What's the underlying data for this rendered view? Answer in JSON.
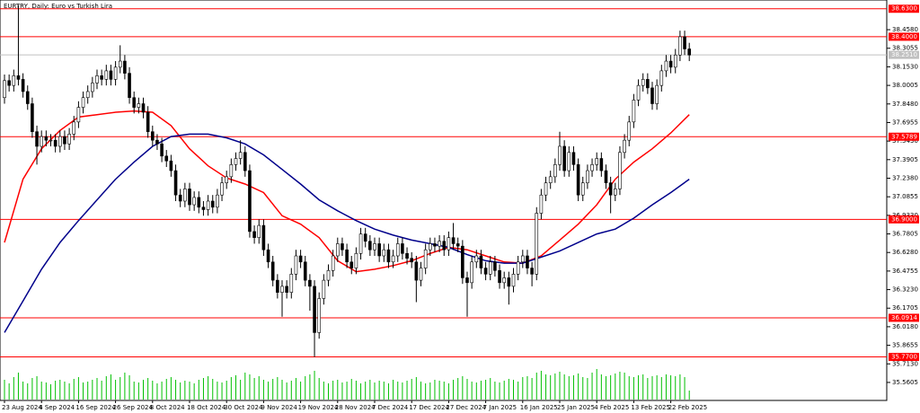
{
  "chart_data": {
    "type": "candlestick",
    "title": "EURTRY, Daily: Euro vs Turkish Lira",
    "categories": [
      "23 Aug 2024",
      null,
      null,
      null,
      null,
      null,
      null,
      null,
      "4 Sep 2024",
      null,
      null,
      null,
      null,
      null,
      null,
      null,
      "16 Sep 2024",
      null,
      null,
      null,
      null,
      null,
      null,
      null,
      "26 Sep 2024",
      null,
      null,
      null,
      null,
      null,
      null,
      null,
      "8 Oct 2024",
      null,
      null,
      null,
      null,
      null,
      null,
      null,
      "18 Oct 2024",
      null,
      null,
      null,
      null,
      null,
      null,
      null,
      "30 Oct 2024",
      null,
      null,
      null,
      null,
      null,
      null,
      null,
      "9 Nov 2024",
      null,
      null,
      null,
      null,
      null,
      null,
      null,
      "19 Nov 2024",
      null,
      null,
      null,
      null,
      null,
      null,
      null,
      "28 Nov 2024",
      null,
      null,
      null,
      null,
      null,
      null,
      null,
      "7 Dec 2024",
      null,
      null,
      null,
      null,
      null,
      null,
      null,
      "17 Dec 2024",
      null,
      null,
      null,
      null,
      null,
      null,
      null,
      "27 Dec 2024",
      null,
      null,
      null,
      null,
      null,
      null,
      null,
      "7 Jan 2025",
      null,
      null,
      null,
      null,
      null,
      null,
      null,
      "16 Jan 2025",
      null,
      null,
      null,
      null,
      null,
      null,
      null,
      "25 Jan 2025",
      null,
      null,
      null,
      null,
      null,
      null,
      null,
      "4 Feb 2025",
      null,
      null,
      null,
      null,
      null,
      null,
      null,
      "13 Feb 2025",
      null,
      null,
      null,
      null,
      null,
      null,
      null,
      "22 Feb 2025",
      null,
      null,
      null,
      null
    ],
    "open": [
      37.9,
      38.04,
      38.0,
      38.08,
      38.05,
      37.95,
      37.85,
      37.62,
      37.5,
      37.58,
      37.55,
      37.55,
      37.5,
      37.58,
      37.52,
      37.6,
      37.7,
      37.82,
      37.9,
      37.95,
      38.02,
      38.08,
      38.05,
      38.12,
      38.05,
      38.15,
      38.2,
      38.1,
      37.9,
      37.82,
      37.85,
      37.78,
      37.62,
      37.55,
      37.52,
      37.42,
      37.38,
      37.3,
      37.1,
      37.05,
      37.15,
      37.02,
      37.08,
      37.0,
      36.98,
      37.05,
      37.0,
      37.1,
      37.2,
      37.25,
      37.35,
      37.4,
      37.45,
      37.3,
      36.8,
      36.75,
      36.85,
      36.65,
      36.55,
      36.4,
      36.3,
      36.35,
      36.3,
      36.45,
      36.6,
      36.55,
      36.4,
      36.35,
      35.97,
      36.25,
      36.4,
      36.48,
      36.6,
      36.7,
      36.65,
      36.55,
      36.5,
      36.62,
      36.78,
      36.72,
      36.65,
      36.7,
      36.6,
      36.65,
      36.55,
      36.6,
      36.7,
      36.62,
      36.58,
      36.55,
      36.4,
      36.5,
      36.65,
      36.7,
      36.68,
      36.72,
      36.65,
      36.75,
      36.7,
      36.68,
      36.42,
      36.38,
      36.55,
      36.6,
      36.5,
      36.45,
      36.55,
      36.48,
      36.38,
      36.42,
      36.35,
      36.45,
      36.55,
      36.6,
      36.5,
      36.45,
      36.95,
      37.1,
      37.2,
      37.25,
      37.35,
      37.5,
      37.3,
      37.45,
      37.35,
      37.1,
      37.2,
      37.3,
      37.35,
      37.4,
      37.3,
      37.2,
      37.1,
      37.15,
      37.45,
      37.55,
      37.7,
      37.88,
      38.0,
      38.05,
      37.98,
      37.85,
      38.0,
      38.12,
      38.2,
      38.15,
      38.25,
      38.4,
      38.3
    ],
    "high": [
      38.09,
      38.09,
      38.13,
      38.66,
      38.1,
      38.0,
      37.9,
      37.67,
      37.63,
      37.63,
      37.6,
      37.6,
      37.63,
      37.63,
      37.65,
      37.75,
      37.87,
      37.95,
      38.0,
      38.07,
      38.13,
      38.13,
      38.17,
      38.17,
      38.2,
      38.33,
      38.25,
      38.15,
      37.95,
      37.9,
      37.9,
      37.83,
      37.67,
      37.6,
      37.57,
      37.47,
      37.43,
      37.35,
      37.15,
      37.2,
      37.2,
      37.13,
      37.13,
      37.05,
      37.1,
      37.1,
      37.15,
      37.25,
      37.3,
      37.4,
      37.45,
      37.55,
      37.5,
      37.35,
      36.85,
      36.9,
      36.9,
      36.7,
      36.6,
      36.45,
      36.4,
      36.4,
      36.5,
      36.65,
      36.65,
      36.6,
      36.45,
      36.4,
      36.3,
      36.45,
      36.53,
      36.65,
      36.75,
      36.75,
      36.7,
      36.6,
      36.67,
      36.83,
      36.83,
      36.77,
      36.75,
      36.75,
      36.7,
      36.7,
      36.65,
      36.75,
      36.75,
      36.67,
      36.63,
      36.6,
      36.55,
      36.7,
      36.75,
      36.75,
      36.77,
      36.77,
      36.8,
      36.87,
      36.75,
      36.73,
      36.47,
      36.6,
      36.65,
      36.65,
      36.55,
      36.6,
      36.6,
      36.53,
      36.47,
      36.47,
      36.5,
      36.6,
      36.65,
      36.65,
      36.55,
      37.0,
      37.15,
      37.25,
      37.3,
      37.4,
      37.62,
      37.55,
      37.5,
      37.5,
      37.4,
      37.25,
      37.35,
      37.4,
      37.45,
      37.45,
      37.35,
      37.25,
      37.2,
      37.5,
      37.6,
      37.75,
      37.93,
      38.05,
      38.1,
      38.1,
      38.03,
      38.05,
      38.17,
      38.25,
      38.25,
      38.3,
      38.45,
      38.45,
      38.35
    ],
    "low": [
      37.85,
      37.95,
      37.95,
      38.0,
      37.9,
      37.8,
      37.57,
      37.35,
      37.45,
      37.5,
      37.5,
      37.45,
      37.45,
      37.47,
      37.47,
      37.55,
      37.65,
      37.77,
      37.85,
      37.9,
      37.97,
      38.0,
      38.0,
      38.0,
      38.0,
      38.1,
      38.05,
      37.85,
      37.77,
      37.77,
      37.73,
      37.57,
      37.5,
      37.47,
      37.37,
      37.33,
      37.25,
      37.05,
      37.0,
      37.0,
      36.97,
      36.97,
      36.95,
      36.93,
      36.93,
      36.95,
      36.95,
      37.05,
      37.15,
      37.2,
      37.3,
      37.35,
      37.25,
      36.75,
      36.7,
      36.7,
      36.6,
      36.5,
      36.35,
      36.25,
      36.1,
      36.25,
      36.25,
      36.4,
      36.5,
      36.35,
      36.15,
      35.77,
      35.92,
      36.2,
      36.35,
      36.43,
      36.55,
      36.6,
      36.5,
      36.45,
      36.45,
      36.57,
      36.67,
      36.6,
      36.6,
      36.55,
      36.55,
      36.5,
      36.5,
      36.55,
      36.57,
      36.53,
      36.5,
      36.22,
      36.35,
      36.45,
      36.6,
      36.63,
      36.63,
      36.6,
      36.6,
      36.65,
      36.63,
      36.37,
      36.1,
      36.33,
      36.5,
      36.45,
      36.4,
      36.4,
      36.43,
      36.33,
      36.33,
      36.2,
      36.3,
      36.4,
      36.5,
      36.45,
      36.35,
      36.4,
      36.9,
      37.05,
      37.15,
      37.2,
      37.3,
      37.25,
      37.25,
      37.3,
      37.05,
      37.05,
      37.15,
      37.25,
      37.3,
      37.25,
      37.15,
      36.95,
      37.05,
      37.1,
      37.4,
      37.5,
      37.65,
      37.83,
      37.95,
      37.93,
      37.8,
      37.8,
      37.95,
      38.07,
      38.1,
      38.1,
      38.2,
      38.25,
      38.2
    ],
    "close": [
      38.04,
      38.0,
      38.08,
      38.05,
      37.95,
      37.85,
      37.62,
      37.5,
      37.58,
      37.55,
      37.55,
      37.5,
      37.58,
      37.52,
      37.6,
      37.7,
      37.82,
      37.9,
      37.95,
      38.02,
      38.08,
      38.05,
      38.12,
      38.05,
      38.15,
      38.2,
      38.1,
      37.9,
      37.82,
      37.85,
      37.78,
      37.62,
      37.55,
      37.52,
      37.42,
      37.38,
      37.3,
      37.1,
      37.05,
      37.15,
      37.02,
      37.08,
      37.0,
      36.98,
      37.05,
      37.0,
      37.1,
      37.2,
      37.25,
      37.35,
      37.4,
      37.45,
      37.3,
      36.8,
      36.75,
      36.85,
      36.65,
      36.55,
      36.4,
      36.3,
      36.35,
      36.3,
      36.45,
      36.6,
      36.55,
      36.4,
      36.35,
      35.97,
      36.25,
      36.4,
      36.48,
      36.6,
      36.7,
      36.65,
      36.55,
      36.5,
      36.62,
      36.78,
      36.72,
      36.65,
      36.7,
      36.6,
      36.65,
      36.55,
      36.6,
      36.7,
      36.62,
      36.58,
      36.55,
      36.4,
      36.5,
      36.65,
      36.7,
      36.68,
      36.72,
      36.65,
      36.75,
      36.7,
      36.68,
      36.42,
      36.38,
      36.55,
      36.6,
      36.5,
      36.45,
      36.55,
      36.48,
      36.38,
      36.42,
      36.35,
      36.45,
      36.55,
      36.6,
      36.5,
      36.45,
      36.95,
      37.1,
      37.2,
      37.25,
      37.35,
      37.5,
      37.3,
      37.45,
      37.35,
      37.1,
      37.2,
      37.3,
      37.35,
      37.4,
      37.3,
      37.2,
      37.1,
      37.15,
      37.45,
      37.55,
      37.7,
      37.88,
      38.0,
      38.05,
      37.98,
      37.85,
      38.0,
      38.12,
      38.2,
      38.15,
      38.25,
      38.4,
      38.3,
      38.25
    ],
    "volume": [
      22,
      18,
      25,
      30,
      20,
      18,
      24,
      26,
      20,
      19,
      17,
      21,
      22,
      20,
      18,
      23,
      25,
      19,
      20,
      22,
      24,
      21,
      26,
      28,
      22,
      25,
      30,
      27,
      20,
      19,
      22,
      24,
      21,
      18,
      20,
      23,
      25,
      22,
      19,
      21,
      20,
      18,
      22,
      24,
      26,
      23,
      20,
      19,
      21,
      25,
      27,
      22,
      30,
      28,
      24,
      26,
      22,
      20,
      23,
      25,
      22,
      19,
      21,
      24,
      20,
      26,
      28,
      32,
      24,
      20,
      18,
      21,
      22,
      19,
      20,
      23,
      21,
      18,
      20,
      22,
      19,
      21,
      20,
      18,
      22,
      20,
      19,
      21,
      23,
      25,
      20,
      18,
      19,
      22,
      21,
      20,
      18,
      22,
      24,
      26,
      23,
      20,
      19,
      21,
      22,
      24,
      20,
      19,
      21,
      23,
      22,
      20,
      25,
      26,
      24,
      30,
      32,
      28,
      27,
      29,
      31,
      28,
      26,
      27,
      29,
      25,
      24,
      30,
      34,
      28,
      26,
      27,
      29,
      31,
      30,
      26,
      25,
      27,
      28,
      24,
      26,
      27,
      25,
      28,
      27,
      26,
      28,
      25,
      10
    ],
    "volume_color": "#00c000",
    "series": [
      {
        "color": "#ff0000",
        "x": [
          0,
          4,
          8,
          12,
          16,
          20,
          24,
          28,
          32,
          36,
          40,
          44,
          48,
          52,
          56,
          60,
          64,
          68,
          72,
          76,
          80,
          84,
          88,
          92,
          96,
          100,
          104,
          108,
          112,
          116,
          120,
          124,
          128,
          132,
          136,
          140,
          144,
          148
        ],
        "values": [
          36.71,
          37.23,
          37.48,
          37.63,
          37.74,
          37.76,
          37.78,
          37.79,
          37.78,
          37.67,
          37.48,
          37.34,
          37.24,
          37.19,
          37.12,
          36.93,
          36.86,
          36.75,
          36.56,
          36.47,
          36.49,
          36.52,
          36.56,
          36.62,
          36.67,
          36.65,
          36.6,
          36.55,
          36.54,
          36.6,
          36.73,
          36.86,
          37.02,
          37.23,
          37.37,
          37.48,
          37.61,
          37.76
        ]
      },
      {
        "color": "#00008b",
        "x": [
          0,
          4,
          8,
          12,
          16,
          20,
          24,
          28,
          32,
          36,
          40,
          44,
          48,
          52,
          56,
          60,
          64,
          68,
          72,
          76,
          80,
          84,
          88,
          92,
          96,
          100,
          104,
          108,
          112,
          116,
          120,
          124,
          128,
          132,
          136,
          140,
          144,
          148
        ],
        "values": [
          35.97,
          36.23,
          36.49,
          36.71,
          36.89,
          37.06,
          37.23,
          37.37,
          37.5,
          37.58,
          37.6,
          37.6,
          37.57,
          37.52,
          37.43,
          37.31,
          37.19,
          37.06,
          36.97,
          36.89,
          36.82,
          36.77,
          36.73,
          36.7,
          36.67,
          36.61,
          36.56,
          36.54,
          36.54,
          36.59,
          36.64,
          36.71,
          36.78,
          36.82,
          36.91,
          37.02,
          37.12,
          37.23
        ]
      }
    ],
    "ylim": [
      35.42,
      38.665
    ],
    "yticks": [
      {
        "value": 38.458,
        "label": "38.4580"
      },
      38.3055,
      {
        "value": 38.153,
        "label": "38.1530"
      },
      38.0005,
      {
        "value": 37.848,
        "label": "37.8480"
      },
      37.6955,
      {
        "value": 37.543,
        "label": "37.5430"
      },
      37.3905,
      {
        "value": 37.238,
        "label": "37.2380"
      },
      37.0855,
      {
        "value": 36.933,
        "label": "36.9330"
      },
      36.7805,
      {
        "value": 36.628,
        "label": "36.6280"
      },
      36.4755,
      {
        "value": 36.323,
        "label": "36.3230"
      },
      36.1705,
      {
        "value": 36.018,
        "label": "36.0180"
      },
      35.8655,
      {
        "value": 35.713,
        "label": "35.7130"
      },
      35.5605
    ],
    "levels": [
      {
        "value": 38.63,
        "label": "38.6300"
      },
      {
        "value": 38.4,
        "label": "38.4000"
      },
      {
        "value": 37.5789,
        "label": "37.5789"
      },
      {
        "value": 36.9,
        "label": "36.9000"
      },
      {
        "value": 36.0914,
        "label": "36.0914"
      },
      {
        "value": 35.77,
        "label": "35.7700"
      }
    ],
    "level_color": "#ff0000",
    "last_price": {
      "value": 38.251,
      "label": "38.2510"
    }
  }
}
